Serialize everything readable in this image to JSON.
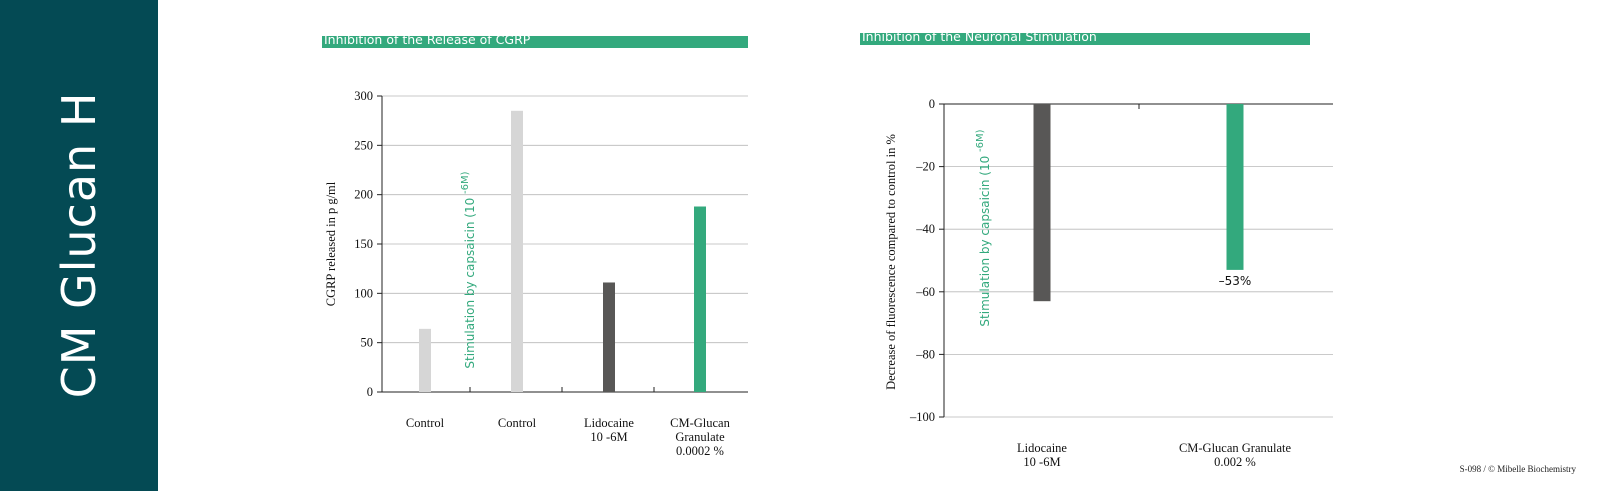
{
  "sidebar": {
    "title": "CM Glucan H"
  },
  "footer": {
    "credit": "S-098 / © Mibelle Biochemistry"
  },
  "colors": {
    "brand": "#044a54",
    "accent": "#33a97d",
    "control": "#d6d6d6",
    "reference": "#585756"
  },
  "chart_data": [
    {
      "type": "bar",
      "title": "Inhibition of the Release of CGRP",
      "ylabel": "CGRP released in p g/ml",
      "ylim": [
        0,
        300
      ],
      "yticks": [
        0,
        50,
        100,
        150,
        200,
        250,
        300
      ],
      "ytick_labels": [
        "0",
        "50",
        "100",
        "150",
        "200",
        "250",
        "300"
      ],
      "annotation": {
        "text": "Stimulation by capsaicin (10",
        "superscript": "-6M)"
      },
      "categories": [
        {
          "lines": [
            "Control"
          ]
        },
        {
          "lines": [
            "Control"
          ]
        },
        {
          "lines": [
            "Lidocaine",
            "10 -6M"
          ]
        },
        {
          "lines": [
            "CM-Glucan",
            "Granulate",
            "0.0002 %"
          ]
        }
      ],
      "values": [
        64,
        285,
        111,
        188
      ],
      "bar_colors": [
        "#d6d6d6",
        "#d6d6d6",
        "#585756",
        "#33a97d"
      ],
      "grid": true
    },
    {
      "type": "bar",
      "title": "Inhibition of the Neuronal Stimulation",
      "ylabel": "Decrease of fluorescence compared to control in   %",
      "ylim": [
        -100,
        0
      ],
      "yticks": [
        0,
        -20,
        -40,
        -60,
        -80,
        -100
      ],
      "ytick_labels": [
        "0",
        "–20",
        "–40",
        "–60",
        "–80",
        "–100"
      ],
      "annotation": {
        "text": "Stimulation by capsaicin (10",
        "superscript": "-6M)"
      },
      "categories": [
        {
          "lines": [
            "Lidocaine",
            "10 -6M"
          ]
        },
        {
          "lines": [
            "CM-Glucan Granulate",
            "0.002 %"
          ]
        }
      ],
      "values": [
        -63,
        -53
      ],
      "bar_colors": [
        "#585756",
        "#33a97d"
      ],
      "data_labels": [
        "",
        "–53%"
      ],
      "grid": true
    }
  ]
}
